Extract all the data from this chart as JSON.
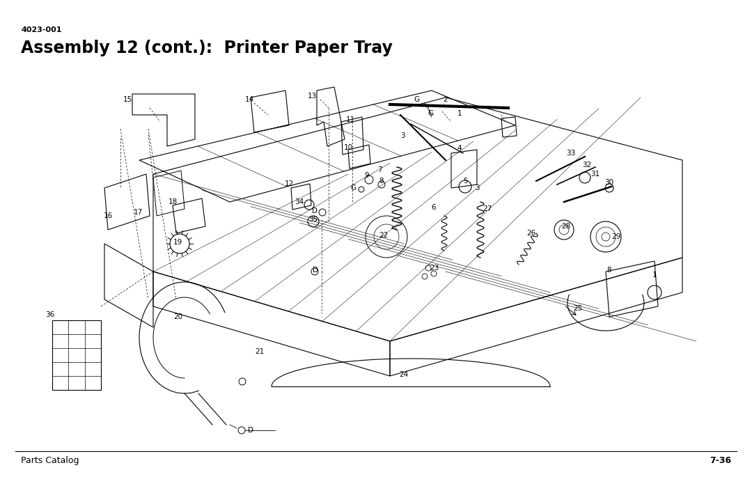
{
  "title_small": "4023-001",
  "title_large": "Assembly 12 (cont.):  Printer Paper Tray",
  "footer_left": "Parts Catalog",
  "footer_right": "7-36",
  "bg_color": "#ffffff",
  "title_small_fontsize": 8,
  "title_large_fontsize": 17,
  "footer_fontsize": 9,
  "label_fontsize": 7.5
}
